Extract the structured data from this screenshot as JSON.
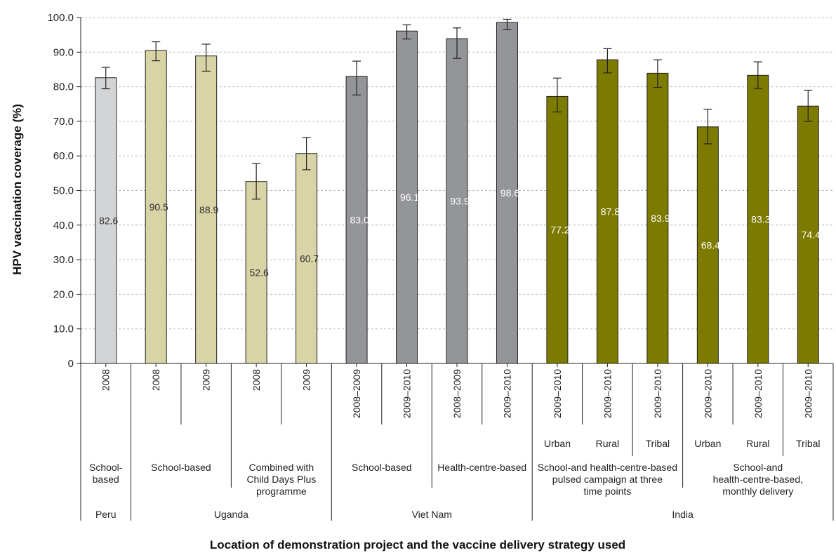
{
  "chart_data": {
    "type": "bar",
    "ylabel": "HPV vaccination coverage (%)",
    "xlabel": "Location of demonstration project and the vaccine delivery strategy used",
    "ylim": [
      0,
      100
    ],
    "yticks": [
      "0",
      "10.0",
      "20.0",
      "30.0",
      "40.0",
      "50.0",
      "60.0",
      "70.0",
      "80.0",
      "90.0",
      "100.0"
    ],
    "grid": "horizontal dashed",
    "bars": [
      {
        "year": "2008",
        "value": 82.6,
        "label": "82.6",
        "err_low": 79.4,
        "err_high": 85.6,
        "color": "#d3d4d6",
        "text_color": "#333333"
      },
      {
        "year": "2008",
        "value": 90.5,
        "label": "90.5",
        "err_low": 87.5,
        "err_high": 93.0,
        "color": "#d8d4a6",
        "text_color": "#333333"
      },
      {
        "year": "2009",
        "value": 88.9,
        "label": "88.9",
        "err_low": 84.5,
        "err_high": 92.3,
        "color": "#d8d4a6",
        "text_color": "#333333"
      },
      {
        "year": "2008",
        "value": 52.6,
        "label": "52.6",
        "err_low": 47.5,
        "err_high": 57.8,
        "color": "#d8d4a6",
        "text_color": "#333333"
      },
      {
        "year": "2009",
        "value": 60.7,
        "label": "60.7",
        "err_low": 56.0,
        "err_high": 65.3,
        "color": "#d8d4a6",
        "text_color": "#333333"
      },
      {
        "year": "2008–2009",
        "value": 83.0,
        "label": "83.0",
        "err_low": 77.6,
        "err_high": 87.4,
        "color": "#939598",
        "text_color": "#ffffff"
      },
      {
        "year": "2009–2010",
        "value": 96.1,
        "label": "96.1",
        "err_low": 93.8,
        "err_high": 97.9,
        "color": "#939598",
        "text_color": "#ffffff"
      },
      {
        "year": "2008–2009",
        "value": 93.9,
        "label": "93.9",
        "err_low": 88.2,
        "err_high": 97.0,
        "color": "#939598",
        "text_color": "#ffffff"
      },
      {
        "year": "2009–2010",
        "value": 98.6,
        "label": "98.6",
        "err_low": 96.5,
        "err_high": 99.5,
        "color": "#939598",
        "text_color": "#ffffff"
      },
      {
        "year": "2009–2010",
        "value": 77.2,
        "label": "77.2",
        "err_low": 72.7,
        "err_high": 82.5,
        "color": "#7d7a00",
        "text_color": "#ffffff",
        "sub": "Urban"
      },
      {
        "year": "2009–2010",
        "value": 87.8,
        "label": "87.8",
        "err_low": 84.0,
        "err_high": 91.0,
        "color": "#7d7a00",
        "text_color": "#ffffff",
        "sub": "Rural"
      },
      {
        "year": "2009–2010",
        "value": 83.9,
        "label": "83.9",
        "err_low": 79.8,
        "err_high": 87.8,
        "color": "#7d7a00",
        "text_color": "#ffffff",
        "sub": "Tribal"
      },
      {
        "year": "2009–2010",
        "value": 68.4,
        "label": "68.4",
        "err_low": 63.5,
        "err_high": 73.5,
        "color": "#7d7a00",
        "text_color": "#ffffff",
        "sub": "Urban"
      },
      {
        "year": "2009–2010",
        "value": 83.3,
        "label": "83.3",
        "err_low": 79.5,
        "err_high": 87.2,
        "color": "#7d7a00",
        "text_color": "#ffffff",
        "sub": "Rural"
      },
      {
        "year": "2009–2010",
        "value": 74.4,
        "label": "74.4",
        "err_low": 70.0,
        "err_high": 79.0,
        "color": "#7d7a00",
        "text_color": "#ffffff",
        "sub": "Tribal"
      }
    ],
    "strategies": [
      {
        "lines": [
          "School-",
          "based"
        ],
        "from": 0,
        "to": 0
      },
      {
        "lines": [
          "School-based"
        ],
        "from": 1,
        "to": 2
      },
      {
        "lines": [
          "Combined with",
          "Child Days Plus",
          "programme"
        ],
        "from": 3,
        "to": 4
      },
      {
        "lines": [
          "School-based"
        ],
        "from": 5,
        "to": 6
      },
      {
        "lines": [
          "Health-centre-based"
        ],
        "from": 7,
        "to": 8
      },
      {
        "lines": [
          "School-and health-centre-based",
          "pulsed campaign at three",
          "time points"
        ],
        "from": 9,
        "to": 11
      },
      {
        "lines": [
          "School-and",
          "health-centre-based,",
          "monthly delivery"
        ],
        "from": 12,
        "to": 14
      }
    ],
    "locations": [
      {
        "name": "Peru",
        "from": 0,
        "to": 0
      },
      {
        "name": "Uganda",
        "from": 1,
        "to": 4
      },
      {
        "name": "Viet Nam",
        "from": 5,
        "to": 8
      },
      {
        "name": "India",
        "from": 9,
        "to": 14
      }
    ]
  }
}
